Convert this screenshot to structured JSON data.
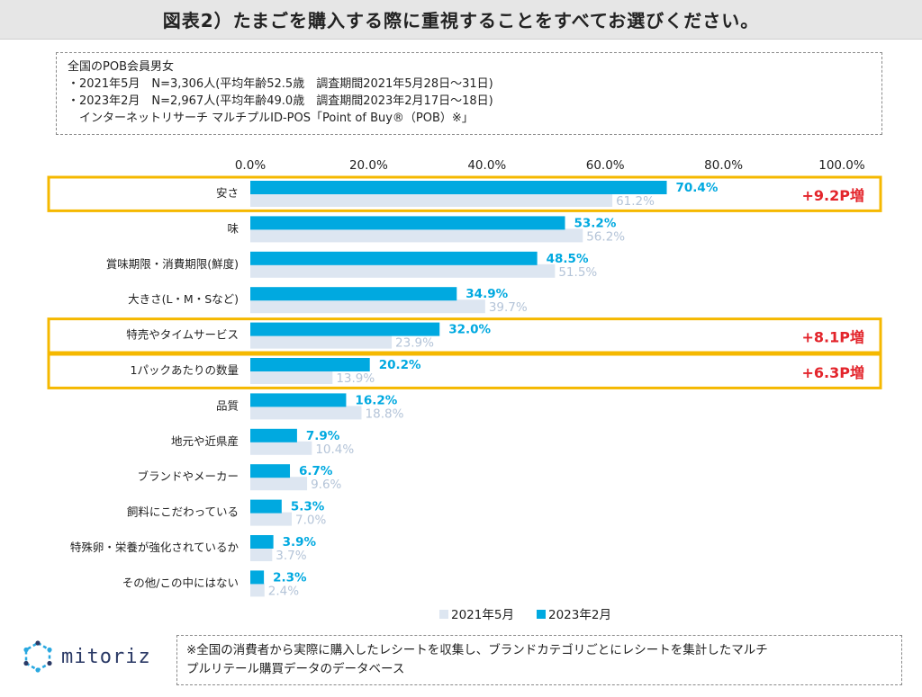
{
  "header": {
    "title": "図表2）たまごを購入する際に重視することをすべてお選びください。"
  },
  "info": {
    "lines": [
      "全国のPOB会員男女",
      "・2021年5月　N=3,306人(平均年齢52.5歳　調査期間2021年5月28日～31日)",
      "・2023年2月　N=2,967人(平均年齢49.0歳　調査期間2023年2月17日～18日)",
      "　インターネットリサーチ マルチプルID-POS「Point of Buy®（POB）※」"
    ]
  },
  "chart_data": {
    "type": "bar",
    "orientation": "horizontal",
    "categories": [
      "安さ",
      "味",
      "賞味期限・消費期限(鮮度)",
      "大きさ(L・M・Sなど)",
      "特売やタイムサービス",
      "1パックあたりの数量",
      "品質",
      "地元や近県産",
      "ブランドやメーカー",
      "飼料にこだわっている",
      "特殊卵・栄養が強化されているか",
      "その他/この中にはない"
    ],
    "series": [
      {
        "name": "2023年2月",
        "color": "#00a9e0",
        "values": [
          70.4,
          53.2,
          48.5,
          34.9,
          32.0,
          20.2,
          16.2,
          7.9,
          6.7,
          5.3,
          3.9,
          2.3
        ],
        "labels": [
          "70.4%",
          "53.2%",
          "48.5%",
          "34.9%",
          "32.0%",
          "20.2%",
          "16.2%",
          "7.9%",
          "6.7%",
          "5.3%",
          "3.9%",
          "2.3%"
        ]
      },
      {
        "name": "2021年5月",
        "color": "#dde6f1",
        "values": [
          61.2,
          56.2,
          51.5,
          39.7,
          23.9,
          13.9,
          18.8,
          10.4,
          9.6,
          7.0,
          3.7,
          2.4
        ],
        "labels": [
          "61.2%",
          "56.2%",
          "51.5%",
          "39.7%",
          "23.9%",
          "13.9%",
          "18.8%",
          "10.4%",
          "9.6%",
          "7.0%",
          "3.7%",
          "2.4%"
        ]
      }
    ],
    "xlim": [
      0,
      100
    ],
    "ticks": [
      "0.0%",
      "20.0%",
      "40.0%",
      "60.0%",
      "80.0%",
      "100.0%"
    ],
    "legend": {
      "position": "bottom",
      "items": [
        "2021年5月",
        "2023年2月"
      ]
    },
    "highlights": [
      {
        "index": 0,
        "label": "+9.2P増"
      },
      {
        "index": 4,
        "label": "+8.1P増"
      },
      {
        "index": 5,
        "label": "+6.3P増"
      }
    ],
    "colors": {
      "highlight_border": "#f5b800",
      "increase_text": "#e3242b",
      "label_2023": "#00a9e0",
      "label_2021": "#b4c4d8"
    }
  },
  "logo": {
    "text": "mitoriz"
  },
  "footnote": {
    "lines": [
      "※全国の消費者から実際に購入したレシートを収集し、ブランドカテゴリごとにレシートを集計したマルチ",
      "プルリテール購買データのデータベース"
    ]
  }
}
